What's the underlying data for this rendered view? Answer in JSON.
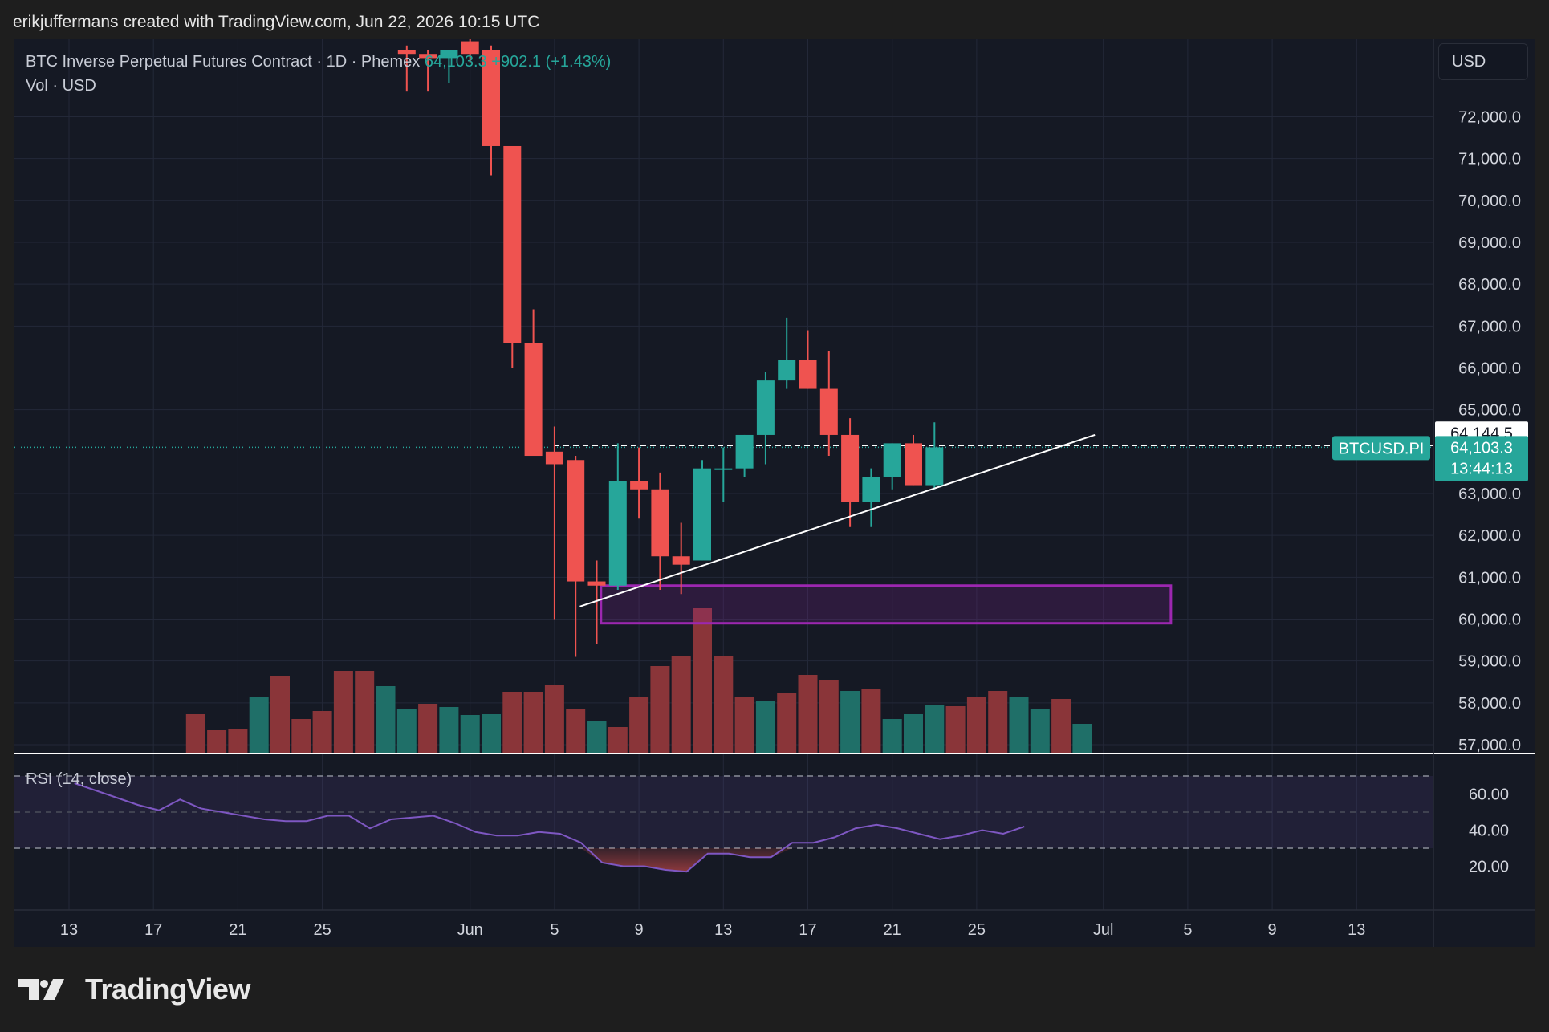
{
  "header": {
    "attribution": "erikjuffermans created with TradingView.com, Jun 22, 2026 10:15 UTC"
  },
  "legend": {
    "symbol": "BTC Inverse Perpetual Futures Contract · 1D · Phemex",
    "last": "64,103.3",
    "change": "+902.1 (+1.43%)",
    "volume": "Vol · USD",
    "rsi": "RSI (14, close)"
  },
  "currency_button": "USD",
  "price_tags": {
    "line_value": "64,144.5",
    "symbol": "BTCUSD.PI",
    "last": "64,103.3",
    "countdown": "13:44:13"
  },
  "brand": {
    "name": "TradingView"
  },
  "colors": {
    "up": "#26a69a",
    "down": "#ef5350",
    "background": "#151924",
    "zone": "#9c27b0",
    "rsi": "#7e57c2"
  },
  "chart_data": {
    "type": "candlestick",
    "price_axis": {
      "ticks": [
        "72,000.0",
        "71,000.0",
        "70,000.0",
        "69,000.0",
        "68,000.0",
        "67,000.0",
        "66,000.0",
        "65,000.0",
        "63,000.0",
        "62,000.0",
        "61,000.0",
        "60,000.0",
        "59,000.0",
        "58,000.0",
        "57,000.0"
      ],
      "range": [
        57000,
        73600
      ]
    },
    "time_axis": {
      "labels": [
        {
          "text": "13",
          "day": 13
        },
        {
          "text": "17",
          "day": 17
        },
        {
          "text": "21",
          "day": 21
        },
        {
          "text": "25",
          "day": 25
        },
        {
          "text": "Jun",
          "day": 32
        },
        {
          "text": "5",
          "day": 36
        },
        {
          "text": "9",
          "day": 40
        },
        {
          "text": "13",
          "day": 44
        },
        {
          "text": "17",
          "day": 48
        },
        {
          "text": "21",
          "day": 52
        },
        {
          "text": "25",
          "day": 56
        },
        {
          "text": "Jul",
          "day": 62
        },
        {
          "text": "5",
          "day": 66
        },
        {
          "text": "9",
          "day": 70
        },
        {
          "text": "13",
          "day": 74
        }
      ]
    },
    "candles": [
      {
        "day": 29,
        "o": 73600,
        "h": 73700,
        "l": 72600,
        "c": 73500
      },
      {
        "day": 30,
        "o": 73500,
        "h": 73600,
        "l": 72600,
        "c": 73400
      },
      {
        "day": 31,
        "o": 73400,
        "h": 73600,
        "l": 72800,
        "c": 73600
      },
      {
        "day": 32,
        "o": 73800,
        "h": 73900,
        "l": 73300,
        "c": 73500
      },
      {
        "day": 33,
        "o": 73600,
        "h": 73700,
        "l": 70600,
        "c": 71300
      },
      {
        "day": 34,
        "o": 71300,
        "h": 71300,
        "l": 66000,
        "c": 66600
      },
      {
        "day": 35,
        "o": 66600,
        "h": 67400,
        "l": 63900,
        "c": 63900
      },
      {
        "day": 36,
        "o": 64000,
        "h": 64600,
        "l": 60000,
        "c": 63700
      },
      {
        "day": 37,
        "o": 63800,
        "h": 63900,
        "l": 59100,
        "c": 60900
      },
      {
        "day": 38,
        "o": 60900,
        "h": 61400,
        "l": 59400,
        "c": 60800
      },
      {
        "day": 39,
        "o": 60800,
        "h": 64200,
        "l": 60700,
        "c": 63300
      },
      {
        "day": 40,
        "o": 63300,
        "h": 64100,
        "l": 62400,
        "c": 63100
      },
      {
        "day": 41,
        "o": 63100,
        "h": 63500,
        "l": 60700,
        "c": 61500
      },
      {
        "day": 42,
        "o": 61500,
        "h": 62300,
        "l": 60600,
        "c": 61300
      },
      {
        "day": 43,
        "o": 61400,
        "h": 63800,
        "l": 61400,
        "c": 63600
      },
      {
        "day": 44,
        "o": 63600,
        "h": 64100,
        "l": 62800,
        "c": 63600
      },
      {
        "day": 45,
        "o": 63600,
        "h": 64400,
        "l": 63400,
        "c": 64400
      },
      {
        "day": 46,
        "o": 64400,
        "h": 65900,
        "l": 63700,
        "c": 65700
      },
      {
        "day": 47,
        "o": 65700,
        "h": 67200,
        "l": 65500,
        "c": 66200
      },
      {
        "day": 48,
        "o": 66200,
        "h": 66900,
        "l": 65500,
        "c": 65500
      },
      {
        "day": 49,
        "o": 65500,
        "h": 66400,
        "l": 63900,
        "c": 64400
      },
      {
        "day": 50,
        "o": 64400,
        "h": 64800,
        "l": 62200,
        "c": 62800
      },
      {
        "day": 51,
        "o": 62800,
        "h": 63600,
        "l": 62200,
        "c": 63400
      },
      {
        "day": 52,
        "o": 63400,
        "h": 64200,
        "l": 63100,
        "c": 64200
      },
      {
        "day": 53,
        "o": 64200,
        "h": 64400,
        "l": 63200,
        "c": 63200
      },
      {
        "day": 54,
        "o": 63200,
        "h": 64700,
        "l": 63100,
        "c": 64103
      }
    ],
    "volume": [
      {
        "day": 19,
        "v": 48,
        "up": false
      },
      {
        "day": 20,
        "v": 28,
        "up": false
      },
      {
        "day": 21,
        "v": 30,
        "up": false
      },
      {
        "day": 22,
        "v": 70,
        "up": true
      },
      {
        "day": 23,
        "v": 96,
        "up": false
      },
      {
        "day": 24,
        "v": 42,
        "up": false
      },
      {
        "day": 25,
        "v": 52,
        "up": false
      },
      {
        "day": 26,
        "v": 102,
        "up": false
      },
      {
        "day": 27,
        "v": 102,
        "up": false
      },
      {
        "day": 28,
        "v": 83,
        "up": true
      },
      {
        "day": 29,
        "v": 54,
        "up": true
      },
      {
        "day": 30,
        "v": 61,
        "up": false
      },
      {
        "day": 31,
        "v": 57,
        "up": true
      },
      {
        "day": 32,
        "v": 47,
        "up": true
      },
      {
        "day": 33,
        "v": 48,
        "up": true
      },
      {
        "day": 34,
        "v": 76,
        "up": false
      },
      {
        "day": 35,
        "v": 76,
        "up": false
      },
      {
        "day": 36,
        "v": 85,
        "up": false
      },
      {
        "day": 37,
        "v": 54,
        "up": false
      },
      {
        "day": 38,
        "v": 39,
        "up": true
      },
      {
        "day": 39,
        "v": 32,
        "up": false
      },
      {
        "day": 40,
        "v": 69,
        "up": false
      },
      {
        "day": 41,
        "v": 108,
        "up": false
      },
      {
        "day": 42,
        "v": 121,
        "up": false
      },
      {
        "day": 43,
        "v": 180,
        "up": false
      },
      {
        "day": 44,
        "v": 120,
        "up": false
      },
      {
        "day": 45,
        "v": 70,
        "up": false
      },
      {
        "day": 46,
        "v": 65,
        "up": true
      },
      {
        "day": 47,
        "v": 75,
        "up": false
      },
      {
        "day": 48,
        "v": 97,
        "up": false
      },
      {
        "day": 49,
        "v": 91,
        "up": false
      },
      {
        "day": 50,
        "v": 77,
        "up": true
      },
      {
        "day": 51,
        "v": 80,
        "up": false
      },
      {
        "day": 52,
        "v": 42,
        "up": true
      },
      {
        "day": 53,
        "v": 48,
        "up": true
      },
      {
        "day": 54,
        "v": 59,
        "up": true
      },
      {
        "day": 55,
        "v": 58,
        "up": false
      },
      {
        "day": 56,
        "v": 70,
        "up": false
      },
      {
        "day": 57,
        "v": 77,
        "up": false
      },
      {
        "day": 58,
        "v": 70,
        "up": true
      },
      {
        "day": 59,
        "v": 55,
        "up": true
      },
      {
        "day": 60,
        "v": 67,
        "up": false
      },
      {
        "day": 61,
        "v": 36,
        "up": true
      }
    ],
    "annotations": {
      "trendline": {
        "from": {
          "day": 37.2,
          "price": 60300
        },
        "to": {
          "day": 61.6,
          "price": 64400
        }
      },
      "zone": {
        "from_day": 38.2,
        "to_day": 65.2,
        "top": 60800,
        "bottom": 59900
      },
      "ref_line_price": 64144.5,
      "last_price": 64103.3
    },
    "rsi": {
      "ticks": [
        "60.00",
        "40.00",
        "20.00"
      ],
      "bands": [
        70,
        50,
        30
      ],
      "range": [
        10,
        74
      ],
      "points": [
        [
          29,
          66
        ],
        [
          30,
          62
        ],
        [
          31,
          58
        ],
        [
          32,
          54
        ],
        [
          33,
          51
        ],
        [
          34,
          57
        ],
        [
          35,
          52
        ],
        [
          36,
          50
        ],
        [
          37,
          48
        ],
        [
          38,
          46
        ],
        [
          39,
          45
        ],
        [
          40,
          45
        ],
        [
          41,
          48
        ],
        [
          42,
          48
        ],
        [
          43,
          41
        ],
        [
          44,
          46
        ],
        [
          45,
          47
        ],
        [
          46,
          48
        ],
        [
          47,
          44
        ],
        [
          48,
          39
        ],
        [
          49,
          37
        ],
        [
          50,
          37
        ],
        [
          51,
          39
        ],
        [
          52,
          38
        ],
        [
          53,
          33
        ],
        [
          54,
          22
        ],
        [
          55,
          20
        ],
        [
          56,
          20
        ],
        [
          57,
          18
        ],
        [
          58,
          17
        ],
        [
          59,
          27
        ],
        [
          60,
          27
        ],
        [
          61,
          25
        ],
        [
          62,
          25
        ],
        [
          63,
          33
        ],
        [
          64,
          33
        ],
        [
          65,
          36
        ],
        [
          66,
          41
        ],
        [
          67,
          43
        ],
        [
          68,
          41
        ],
        [
          69,
          38
        ],
        [
          70,
          35
        ],
        [
          71,
          37
        ],
        [
          72,
          40
        ],
        [
          73,
          38
        ],
        [
          74,
          42
        ]
      ]
    }
  }
}
